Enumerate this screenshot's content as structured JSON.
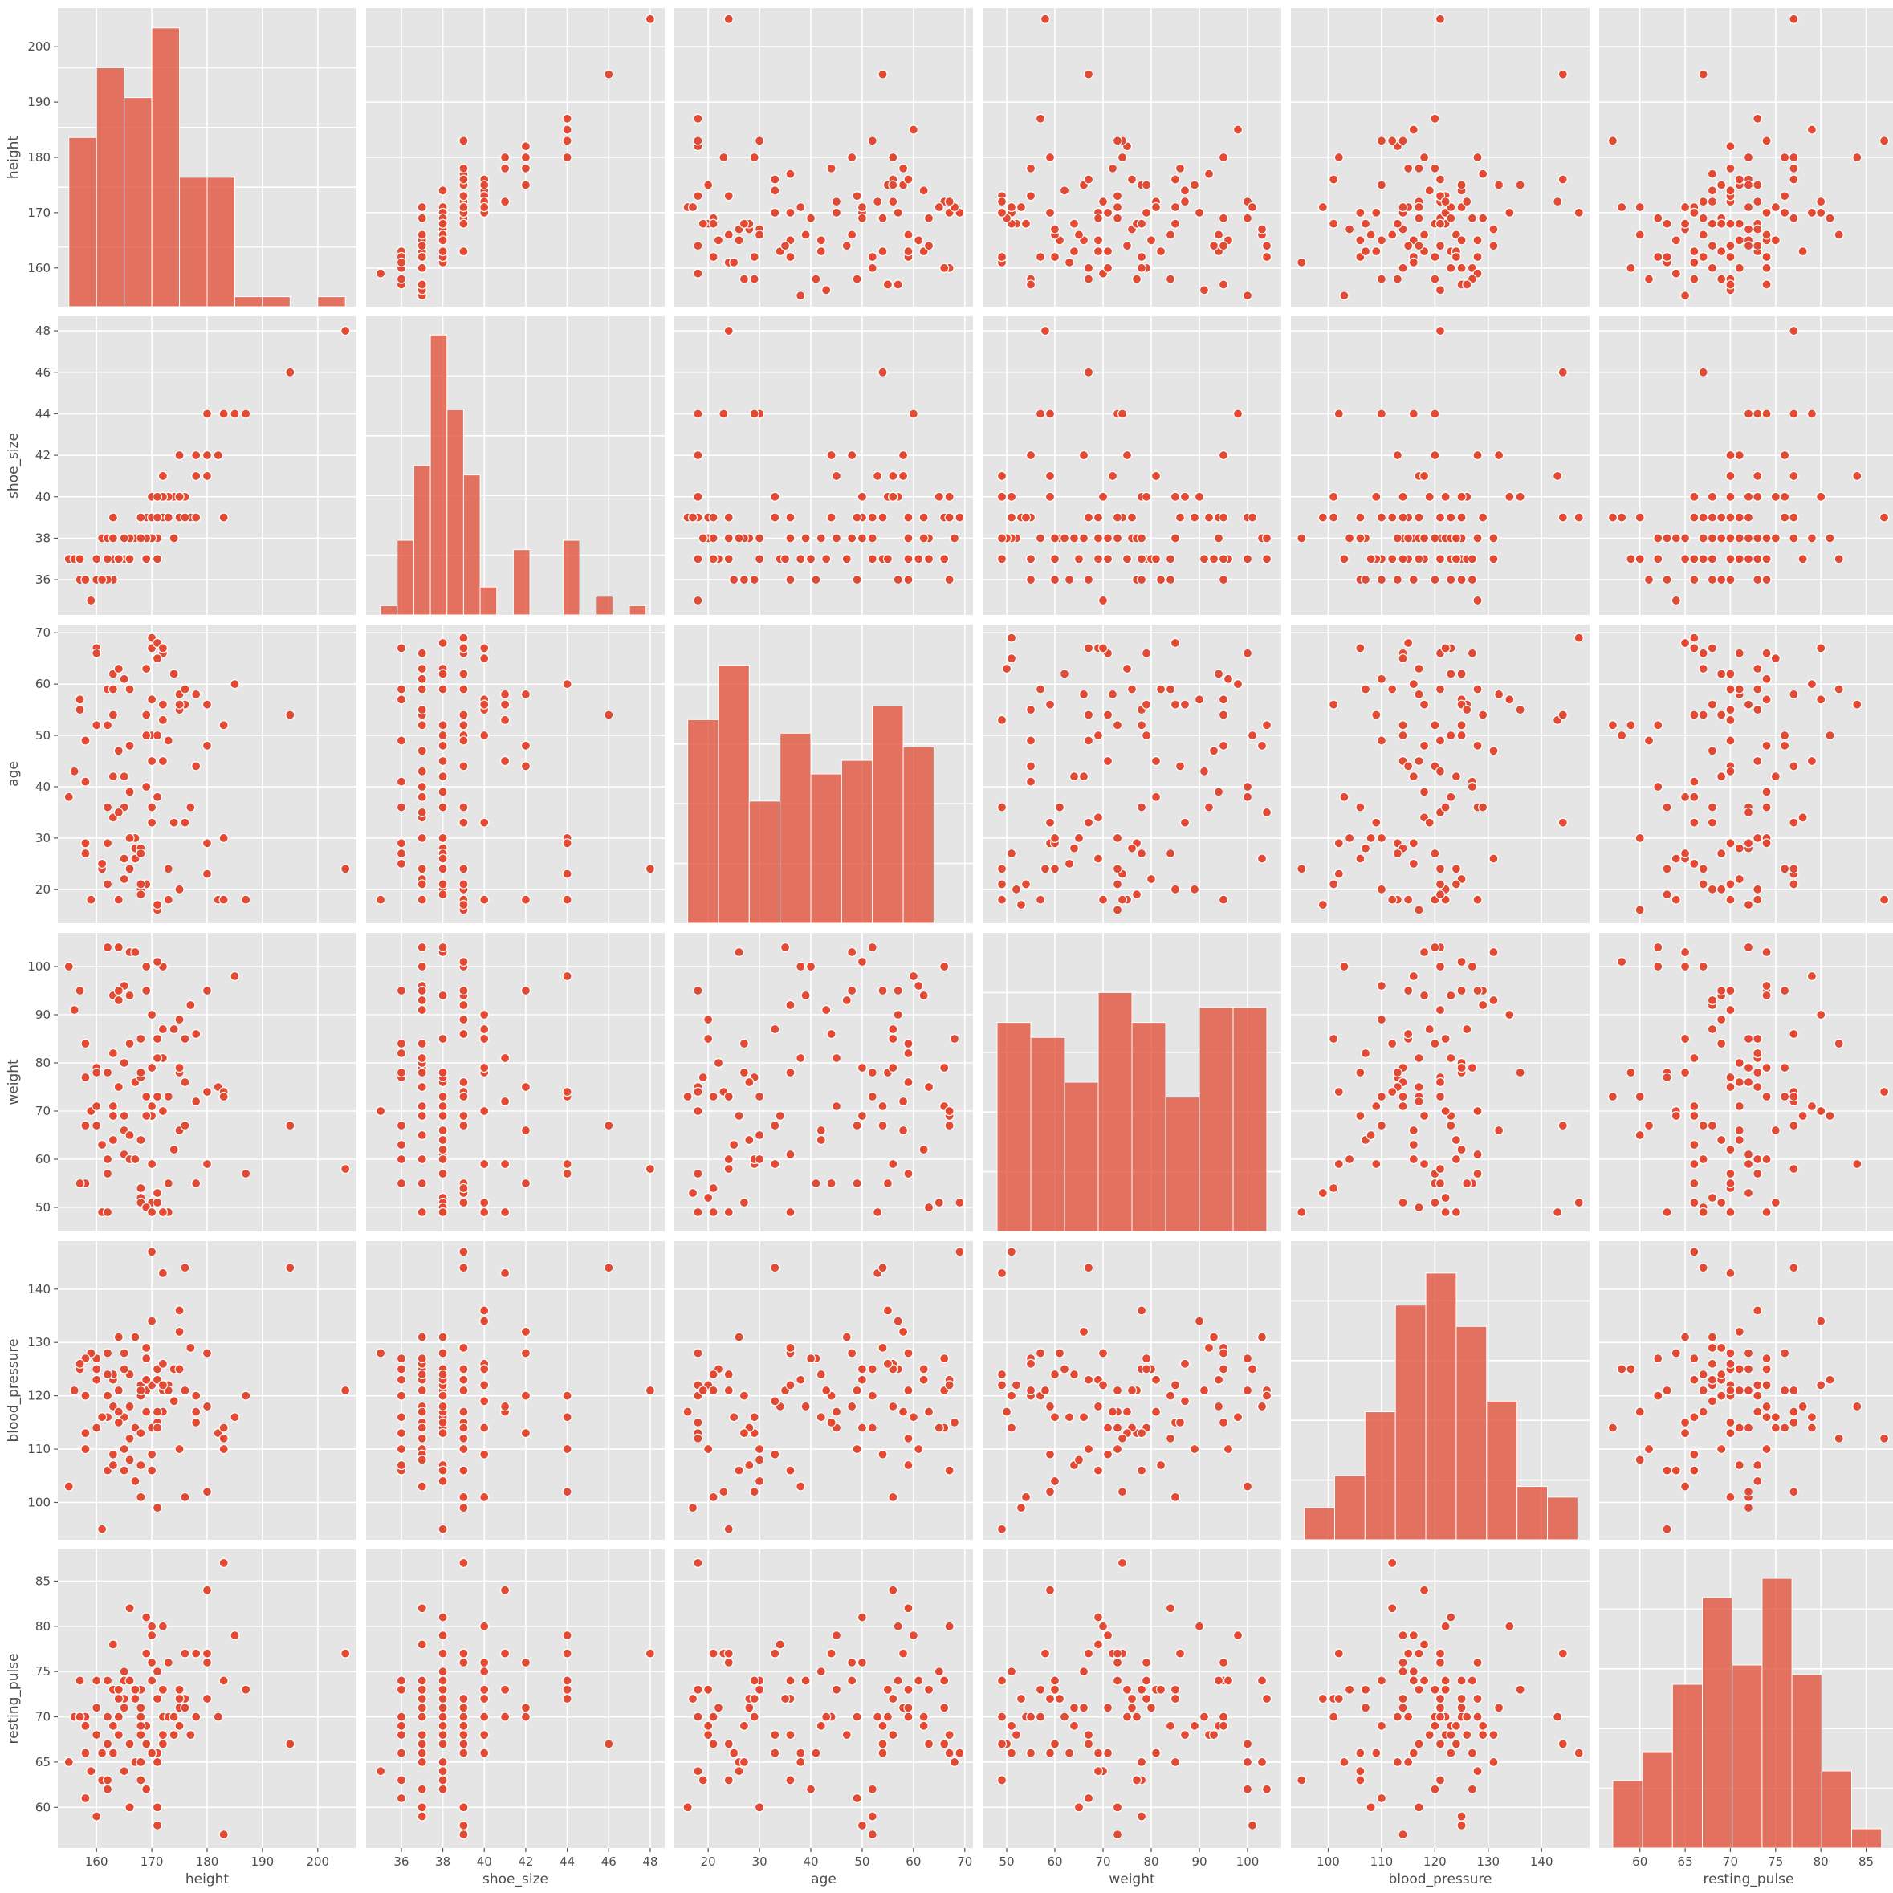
{
  "chart_data": {
    "type": "scatter",
    "variables": [
      "height",
      "shoe_size",
      "age",
      "weight",
      "blood_pressure",
      "resting_pulse"
    ],
    "axes": {
      "height": {
        "label": "height",
        "range": [
          153,
          207
        ],
        "ticks": [
          160,
          170,
          180,
          190,
          200
        ],
        "tick_labels": [
          "160",
          "170",
          "180",
          "190",
          "200"
        ]
      },
      "shoe_size": {
        "label": "shoe_size",
        "range": [
          34.3,
          48.7
        ],
        "ticks": [
          36,
          38,
          40,
          42,
          44,
          46,
          48
        ],
        "tick_labels": [
          "36",
          "38",
          "40",
          "42",
          "44",
          "46",
          "48"
        ]
      },
      "age": {
        "label": "age",
        "range": [
          13.4,
          71.6
        ],
        "ticks": [
          20,
          30,
          40,
          50,
          60,
          70
        ],
        "tick_labels": [
          "20",
          "30",
          "40",
          "50",
          "60",
          "70"
        ]
      },
      "weight": {
        "label": "weight",
        "range": [
          45.0,
          107.0
        ],
        "ticks": [
          50,
          60,
          70,
          80,
          90,
          100
        ],
        "tick_labels": [
          "50",
          "60",
          "70",
          "80",
          "90",
          "100"
        ]
      },
      "blood_pressure": {
        "label": "blood_pressure",
        "range": [
          93.0,
          149.0
        ],
        "ticks": [
          100,
          110,
          120,
          130,
          140
        ],
        "tick_labels": [
          "100",
          "110",
          "120",
          "130",
          "140"
        ]
      },
      "resting_pulse": {
        "label": "resting_pulse",
        "range": [
          55.5,
          88.5
        ],
        "ticks": [
          60,
          65,
          70,
          75,
          80,
          85
        ],
        "tick_labels": [
          "60",
          "65",
          "70",
          "75",
          "80",
          "85"
        ]
      }
    },
    "histograms": {
      "height": {
        "bins": [
          155,
          160,
          165,
          170,
          175,
          180,
          185,
          190,
          195,
          200,
          205
        ],
        "counts": [
          17,
          24,
          21,
          28,
          13,
          13,
          1,
          1,
          0,
          1
        ],
        "ylim": [
          0,
          30
        ]
      },
      "shoe_size": {
        "bins": [
          35,
          35.8,
          36.6,
          37.4,
          38.2,
          39,
          39.8,
          40.6,
          41.4,
          42.2,
          43,
          43.8,
          44.6,
          45.4,
          46.2,
          47,
          47.8
        ],
        "counts": [
          1,
          8,
          16,
          30,
          22,
          15,
          3,
          0,
          7,
          0,
          0,
          8,
          0,
          2,
          0,
          1
        ],
        "ylim": [
          0,
          32
        ]
      },
      "age": {
        "bins": [
          16,
          22,
          28,
          34,
          40,
          46,
          52,
          58,
          64,
          70
        ],
        "counts": [
          15,
          19,
          9,
          14,
          11,
          12,
          16,
          13,
          0
        ],
        "ylim": [
          0,
          22
        ]
      },
      "weight": {
        "bins": [
          48,
          55,
          62,
          69,
          76,
          83,
          90,
          97,
          104
        ],
        "counts": [
          14,
          13,
          10,
          16,
          14,
          9,
          15,
          15
        ],
        "ylim": [
          0,
          20
        ]
      },
      "blood_pressure": {
        "bins": [
          95.5,
          101.2,
          106.9,
          112.6,
          118.3,
          124,
          129.7,
          135.4,
          141.1,
          146.8
        ],
        "counts": [
          3,
          6,
          12,
          22,
          25,
          20,
          13,
          5,
          4
        ],
        "ylim": [
          0,
          28
        ]
      },
      "resting_pulse": {
        "bins": [
          57,
          60.3,
          63.6,
          66.9,
          70.2,
          73.5,
          76.8,
          80.1,
          83.4,
          86.7
        ],
        "counts": [
          7,
          10,
          17,
          26,
          19,
          28,
          18,
          8,
          2
        ],
        "ylim": [
          0,
          31
        ]
      }
    },
    "points": {
      "height": [
        155,
        158,
        161,
        160,
        165,
        163,
        170,
        172,
        168,
        167,
        175,
        170,
        183,
        180,
        178,
        176,
        172,
        171,
        165,
        162,
        158,
        163,
        168,
        166,
        169,
        174,
        178,
        182,
        185,
        187,
        160,
        157,
        164,
        170,
        168,
        173,
        175,
        180,
        166,
        162,
        159,
        171,
        168,
        165,
        163,
        167,
        169,
        170,
        172,
        176,
        195,
        205,
        183,
        180,
        175,
        171,
        164,
        160,
        158,
        156,
        173,
        168,
        166,
        170,
        162,
        165,
        169,
        171,
        174,
        177,
        163,
        161,
        168,
        172,
        170,
        167,
        164,
        176,
        180,
        158,
        162,
        166,
        169,
        171,
        173,
        175,
        160,
        157,
        163,
        168,
        170,
        164,
        166,
        172,
        178,
        183,
        162,
        165,
        169,
        171
      ],
      "shoe_size": [
        37,
        36,
        38,
        37,
        38,
        39,
        40,
        41,
        38,
        38,
        42,
        40,
        44,
        44,
        42,
        40,
        39,
        39,
        38,
        38,
        36,
        37,
        38,
        38,
        39,
        40,
        41,
        42,
        44,
        44,
        37,
        36,
        37,
        39,
        38,
        40,
        40,
        42,
        37,
        36,
        35,
        39,
        38,
        37,
        36,
        38,
        38,
        39,
        41,
        39,
        46,
        48,
        39,
        44,
        39,
        39,
        37,
        36,
        36,
        37,
        39,
        38,
        37,
        38,
        36,
        37,
        38,
        38,
        38,
        39,
        37,
        36,
        39,
        40,
        38,
        38,
        37,
        39,
        41,
        36,
        38,
        37,
        38,
        37,
        39,
        40,
        37,
        37,
        38,
        38,
        40,
        37,
        38,
        40,
        39,
        39,
        37,
        38,
        37,
        40
      ],
      "age": [
        38,
        29,
        24,
        66,
        36,
        62,
        50,
        45,
        20,
        28,
        58,
        57,
        30,
        23,
        44,
        56,
        66,
        16,
        42,
        59,
        49,
        34,
        20,
        48,
        54,
        33,
        58,
        18,
        60,
        18,
        52,
        57,
        35,
        67,
        27,
        18,
        55,
        48,
        24,
        36,
        18,
        50,
        28,
        61,
        59,
        26,
        21,
        69,
        53,
        33,
        54,
        24,
        18,
        29,
        20,
        17,
        18,
        67,
        27,
        43,
        49,
        19,
        59,
        45,
        29,
        22,
        63,
        68,
        62,
        36,
        54,
        25,
        21,
        56,
        36,
        30,
        47,
        59,
        56,
        41,
        52,
        30,
        50,
        38,
        24,
        56,
        66,
        55,
        42,
        27,
        33,
        63,
        39,
        67,
        44,
        52,
        21,
        26,
        40,
        65
      ],
      "weight": [
        100,
        77,
        49,
        79,
        61,
        94,
        79,
        81,
        52,
        76,
        66,
        90,
        73,
        74,
        55,
        85,
        100,
        73,
        66,
        57,
        67,
        69,
        85,
        103,
        95,
        87,
        72,
        75,
        98,
        57,
        78,
        95,
        104,
        69,
        51,
        49,
        78,
        95,
        60,
        78,
        70,
        101,
        64,
        96,
        82,
        103,
        73,
        51,
        49,
        67,
        67,
        58,
        74,
        59,
        89,
        53,
        95,
        67,
        84,
        91,
        55,
        77,
        84,
        71,
        60,
        80,
        50,
        85,
        62,
        92,
        71,
        63,
        54,
        87,
        49,
        60,
        93,
        76,
        59,
        55,
        104,
        65,
        69,
        81,
        73,
        79,
        71,
        55,
        64,
        78,
        59,
        75,
        94,
        70,
        86,
        73,
        49,
        69,
        100,
        51
      ],
      "blood_pressure": [
        103,
        113,
        95,
        127,
        128,
        123,
        114,
        117,
        122,
        114,
        132,
        134,
        110,
        102,
        120,
        101,
        121,
        117,
        116,
        128,
        110,
        118,
        122,
        118,
        129,
        119,
        117,
        113,
        116,
        120,
        125,
        125,
        121,
        106,
        120,
        122,
        136,
        128,
        124,
        106,
        128,
        125,
        107,
        110,
        107,
        131,
        121,
        147,
        143,
        144,
        144,
        121,
        112,
        102,
        110,
        99,
        115,
        123,
        120,
        121,
        121,
        121,
        112,
        114,
        116,
        125,
        117,
        115,
        125,
        129,
        109,
        116,
        101,
        126,
        122,
        104,
        131,
        121,
        118,
        127,
        120,
        108,
        123,
        123,
        121,
        125,
        114,
        126,
        124,
        113,
        109,
        117,
        118,
        122,
        115,
        114,
        124,
        106,
        127,
        114
      ],
      "resting_pulse": [
        65,
        70,
        63,
        74,
        72,
        69,
        76,
        73,
        68,
        72,
        71,
        80,
        74,
        77,
        70,
        72,
        67,
        60,
        75,
        70,
        61,
        78,
        73,
        74,
        69,
        68,
        77,
        70,
        79,
        73,
        59,
        74,
        72,
        66,
        69,
        70,
        73,
        76,
        67,
        63,
        64,
        58,
        71,
        74,
        73,
        65,
        77,
        66,
        70,
        77,
        67,
        77,
        87,
        72,
        69,
        72,
        70,
        68,
        69,
        70,
        70,
        63,
        82,
        79,
        74,
        71,
        67,
        65,
        70,
        68,
        66,
        66,
        70,
        68,
        74,
        73,
        68,
        71,
        84,
        66,
        62,
        60,
        81,
        66,
        76,
        72,
        71,
        70,
        69,
        65,
        66,
        73,
        74,
        80,
        77,
        57,
        67,
        64,
        62,
        75
      ]
    }
  }
}
